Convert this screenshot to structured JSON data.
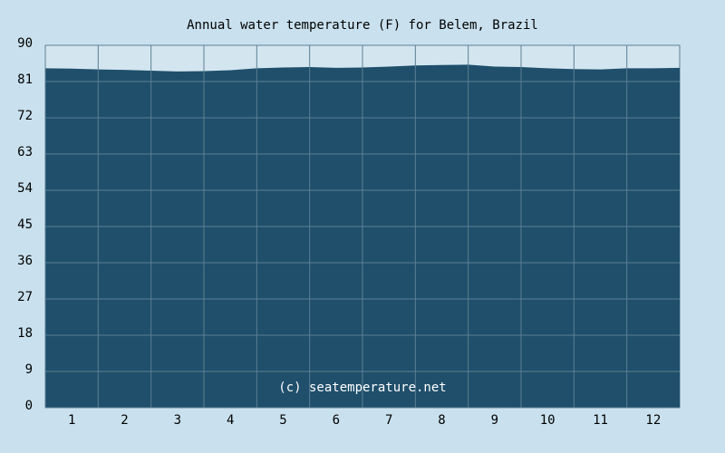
{
  "chart_data": {
    "type": "area",
    "title": "Annual water temperature (F) for Belem, Brazil",
    "annotation": "(c) seatemperature.net",
    "x": [
      0,
      0.5,
      1,
      1.5,
      2,
      2.5,
      3,
      3.5,
      4,
      4.5,
      5,
      5.5,
      6,
      6.5,
      7,
      7.5,
      8,
      8.5,
      9,
      9.5,
      10,
      10.5,
      11,
      11.5,
      12
    ],
    "values": [
      84.3,
      84.2,
      84.0,
      83.9,
      83.7,
      83.5,
      83.6,
      83.8,
      84.3,
      84.5,
      84.6,
      84.4,
      84.5,
      84.7,
      85.0,
      85.1,
      85.2,
      84.7,
      84.6,
      84.3,
      84.1,
      84.0,
      84.3,
      84.3,
      84.4
    ],
    "color": "#1f4f6b",
    "xlim": [
      0,
      12
    ],
    "xticks": [
      {
        "value": 0.5,
        "label": "1"
      },
      {
        "value": 1.5,
        "label": "2"
      },
      {
        "value": 2.5,
        "label": "3"
      },
      {
        "value": 3.5,
        "label": "4"
      },
      {
        "value": 4.5,
        "label": "5"
      },
      {
        "value": 5.5,
        "label": "6"
      },
      {
        "value": 6.5,
        "label": "7"
      },
      {
        "value": 7.5,
        "label": "8"
      },
      {
        "value": 8.5,
        "label": "9"
      },
      {
        "value": 9.5,
        "label": "10"
      },
      {
        "value": 10.5,
        "label": "11"
      },
      {
        "value": 11.5,
        "label": "12"
      }
    ],
    "ylim": [
      0,
      90
    ],
    "yticks": [
      0,
      9,
      18,
      27,
      36,
      45,
      54,
      63,
      72,
      81,
      90
    ],
    "grid": true
  }
}
